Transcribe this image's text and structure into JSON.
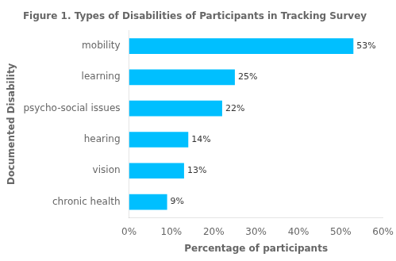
{
  "chart_data": {
    "type": "bar",
    "orientation": "horizontal",
    "title": "Figure 1. Types of Disabilities of Participants in Tracking Survey",
    "categories": [
      "chronic health",
      "vision",
      "hearing",
      "psycho-social issues",
      "learning",
      "mobility"
    ],
    "values": [
      9,
      13,
      14,
      22,
      25,
      53
    ],
    "value_labels": [
      "9%",
      "13%",
      "14%",
      "22%",
      "25%",
      "53%"
    ],
    "data_labels": true,
    "color": "#00BFFF",
    "xlabel": "Percentage of participants",
    "ylabel": "Documented Disability",
    "xlim": [
      0,
      60
    ],
    "xticks": [
      {
        "value": 0,
        "label": "0%"
      },
      {
        "value": 10,
        "label": "10%"
      },
      {
        "value": 20,
        "label": "20%"
      },
      {
        "value": 30,
        "label": "30%"
      },
      {
        "value": 40,
        "label": "40%"
      },
      {
        "value": 50,
        "label": "50%"
      },
      {
        "value": 60,
        "label": "60%"
      }
    ],
    "grid": false
  }
}
